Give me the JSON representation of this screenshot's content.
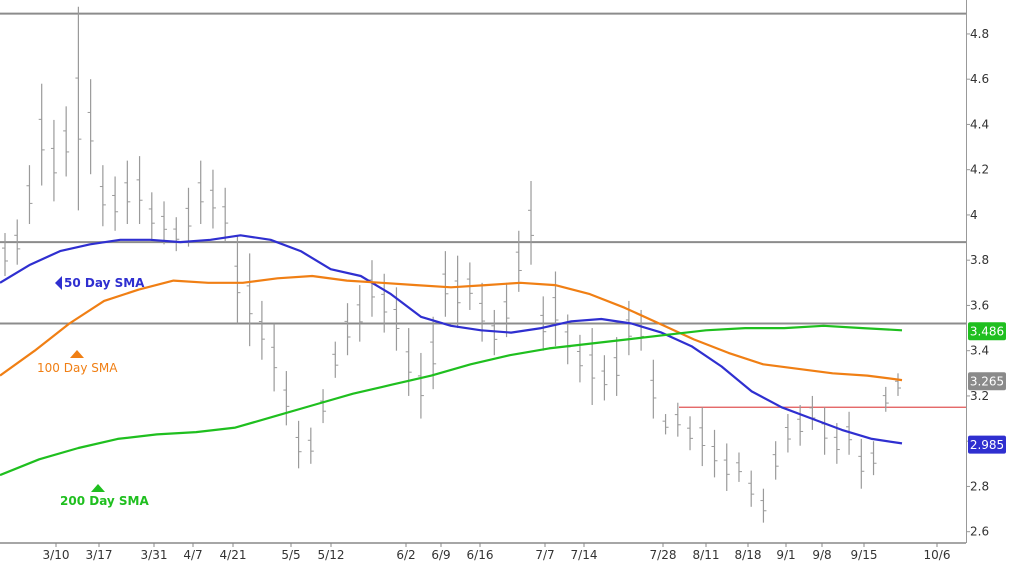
{
  "chart_data": {
    "type": "line",
    "ohlc_series_name": "",
    "ylim": [
      2.55,
      4.95
    ],
    "y_ticks": [
      "2.6",
      "2.8",
      "3",
      "3.2",
      "3.4",
      "3.6",
      "3.8",
      "4",
      "4.2",
      "4.4",
      "4.6",
      "4.8"
    ],
    "x_ticks": [
      "3/10",
      "3/17",
      "3/31",
      "4/7",
      "4/21",
      "5/5",
      "5/12",
      "6/2",
      "6/9",
      "6/16",
      "7/7",
      "7/14",
      "7/28",
      "8/11",
      "8/18",
      "9/1",
      "9/8",
      "9/15",
      "10/6"
    ],
    "horizontal_lines": [
      4.89,
      3.88,
      3.52
    ],
    "support_line": {
      "value": 3.15,
      "from": "7/28",
      "color": "#e05555"
    },
    "series": [
      {
        "name": "50 Day SMA",
        "label": "50 Day SMA",
        "color": "#2f2fd0",
        "values": [
          3.7,
          3.78,
          3.84,
          3.87,
          3.89,
          3.89,
          3.88,
          3.89,
          3.91,
          3.89,
          3.84,
          3.76,
          3.73,
          3.65,
          3.55,
          3.51,
          3.49,
          3.48,
          3.5,
          3.53,
          3.54,
          3.52,
          3.48,
          3.42,
          3.33,
          3.22,
          3.15,
          3.1,
          3.05,
          3.01,
          2.99
        ]
      },
      {
        "name": "100 Day SMA",
        "label": "100  Day SMA",
        "color": "#f07f14",
        "values": [
          3.29,
          3.4,
          3.52,
          3.62,
          3.67,
          3.71,
          3.7,
          3.7,
          3.72,
          3.73,
          3.71,
          3.7,
          3.69,
          3.68,
          3.69,
          3.7,
          3.69,
          3.65,
          3.59,
          3.52,
          3.45,
          3.39,
          3.34,
          3.32,
          3.3,
          3.29,
          3.27
        ]
      },
      {
        "name": "200 Day SMA",
        "label": "200 Day SMA",
        "color": "#1fbf1f",
        "values": [
          2.85,
          2.92,
          2.97,
          3.01,
          3.03,
          3.04,
          3.06,
          3.11,
          3.16,
          3.21,
          3.25,
          3.29,
          3.34,
          3.38,
          3.41,
          3.43,
          3.45,
          3.47,
          3.49,
          3.5,
          3.5,
          3.51,
          3.5,
          3.49
        ]
      }
    ],
    "last_values": [
      {
        "text": "3.486",
        "value": 3.486,
        "bg": "#1fbf1f",
        "fg": "#ffffff"
      },
      {
        "text": "3.265",
        "value": 3.265,
        "bg": "#8a8a8a",
        "fg": "#ffffff"
      },
      {
        "text": "2.985",
        "value": 2.985,
        "bg": "#2f2fd0",
        "fg": "#ffffff"
      }
    ],
    "price_bars": {
      "color": "#9a9a9a",
      "values": [
        [
          3.92,
          3.73
        ],
        [
          3.98,
          3.78
        ],
        [
          4.22,
          3.96
        ],
        [
          4.58,
          4.13
        ],
        [
          4.42,
          4.06
        ],
        [
          4.48,
          4.17
        ],
        [
          4.92,
          4.02
        ],
        [
          4.6,
          4.18
        ],
        [
          4.22,
          3.95
        ],
        [
          4.17,
          3.93
        ],
        [
          4.24,
          3.96
        ],
        [
          4.26,
          3.96
        ],
        [
          4.1,
          3.89
        ],
        [
          4.06,
          3.87
        ],
        [
          3.99,
          3.84
        ],
        [
          4.12,
          3.86
        ],
        [
          4.24,
          3.96
        ],
        [
          4.2,
          3.94
        ],
        [
          4.12,
          3.88
        ],
        [
          3.91,
          3.52
        ],
        [
          3.83,
          3.42
        ],
        [
          3.62,
          3.36
        ],
        [
          3.52,
          3.22
        ],
        [
          3.31,
          3.07
        ],
        [
          3.09,
          2.88
        ],
        [
          3.06,
          2.9
        ],
        [
          3.23,
          3.08
        ],
        [
          3.44,
          3.28
        ],
        [
          3.61,
          3.38
        ],
        [
          3.69,
          3.44
        ],
        [
          3.8,
          3.55
        ],
        [
          3.74,
          3.48
        ],
        [
          3.68,
          3.4
        ],
        [
          3.5,
          3.2
        ],
        [
          3.39,
          3.1
        ],
        [
          3.55,
          3.23
        ],
        [
          3.84,
          3.55
        ],
        [
          3.82,
          3.5
        ],
        [
          3.79,
          3.58
        ],
        [
          3.7,
          3.44
        ],
        [
          3.58,
          3.38
        ],
        [
          3.7,
          3.46
        ],
        [
          3.93,
          3.66
        ],
        [
          4.15,
          3.78
        ],
        [
          3.64,
          3.4
        ],
        [
          3.75,
          3.42
        ],
        [
          3.56,
          3.34
        ],
        [
          3.47,
          3.26
        ],
        [
          3.5,
          3.16
        ],
        [
          3.38,
          3.18
        ],
        [
          3.46,
          3.2
        ],
        [
          3.62,
          3.38
        ],
        [
          3.58,
          3.4
        ],
        [
          3.36,
          3.1
        ],
        [
          3.12,
          3.03
        ],
        [
          3.17,
          3.02
        ],
        [
          3.11,
          2.96
        ],
        [
          3.15,
          2.89
        ],
        [
          3.05,
          2.84
        ],
        [
          2.99,
          2.78
        ],
        [
          2.95,
          2.82
        ],
        [
          2.87,
          2.71
        ],
        [
          2.79,
          2.64
        ],
        [
          3.0,
          2.83
        ],
        [
          3.12,
          2.95
        ],
        [
          3.16,
          2.98
        ],
        [
          3.2,
          3.05
        ],
        [
          3.15,
          2.94
        ],
        [
          3.08,
          2.9
        ],
        [
          3.13,
          2.94
        ],
        [
          3.01,
          2.79
        ],
        [
          3.0,
          2.85
        ],
        [
          3.24,
          3.13
        ],
        [
          3.3,
          3.2
        ]
      ]
    }
  }
}
